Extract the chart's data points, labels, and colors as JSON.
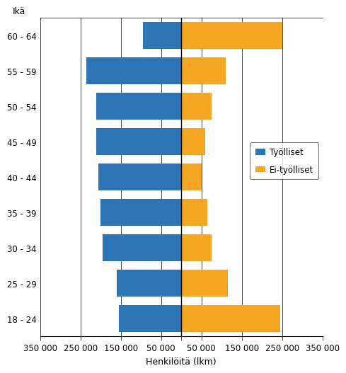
{
  "age_groups": [
    "18 - 24",
    "25 - 29",
    "30 - 34",
    "35 - 39",
    "40 - 44",
    "45 - 49",
    "50 - 54",
    "55 - 59",
    "60 - 64"
  ],
  "tyolliset": [
    155000,
    160000,
    195000,
    200000,
    205000,
    210000,
    210000,
    235000,
    95000
  ],
  "ei_tyolliset": [
    245000,
    115000,
    75000,
    65000,
    50000,
    60000,
    75000,
    110000,
    250000
  ],
  "xlim": 350000,
  "xticks": [
    -350000,
    -250000,
    -150000,
    -50000,
    0,
    50000,
    150000,
    250000,
    350000
  ],
  "xtick_labels": [
    "350 000",
    "250 000",
    "150 000",
    "50 000",
    "",
    "50 000",
    "150 000",
    "250 000",
    "350 000"
  ],
  "xlabel": "Henkilöitä (lkm)",
  "ylabel": "Ikä",
  "blue_color": "#2E75B6",
  "orange_color": "#F5A623",
  "legend_tyolliset": "Työlliset",
  "legend_ei_tyolliset": "Ei-työlliset",
  "bar_height": 0.75,
  "tick_fontsize": 8.5,
  "label_fontsize": 9
}
